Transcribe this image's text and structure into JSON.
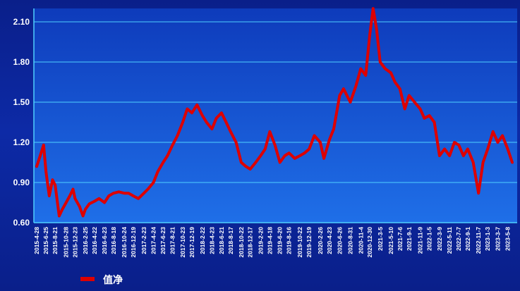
{
  "chart_data": {
    "type": "line",
    "title": "",
    "xlabel": "",
    "ylabel": "",
    "ylim": [
      0.6,
      2.2
    ],
    "yticks": [
      "0.60",
      "0.90",
      "1.20",
      "1.50",
      "1.80",
      "2.10"
    ],
    "ytick_values": [
      0.6,
      0.9,
      1.2,
      1.5,
      1.8,
      2.1
    ],
    "grid": true,
    "legend_position": "bottom-left",
    "colors": {
      "background": "#0d2aa6",
      "plot_bg": "#1450d0",
      "grid": "#4fd0ff",
      "line": "#dd0000",
      "text": "#ffffff"
    },
    "x_tick_labels": [
      "2015-4-28",
      "2015-6-25",
      "2015-8-21",
      "2015-10-28",
      "2015-12-23",
      "2016-2-25",
      "2016-4-22",
      "2016-6-23",
      "2016-8-18",
      "2016-10-24",
      "2016-12-19",
      "2017-2-23",
      "2017-4-24",
      "2017-6-23",
      "2017-8-21",
      "2017-10-23",
      "2017-12-19",
      "2018-2-22",
      "2018-4-23",
      "2018-6-21",
      "2018-8-17",
      "2018-10-22",
      "2018-12-17",
      "2019-2-20",
      "2019-4-18",
      "2019-6-20",
      "2019-8-16",
      "2019-10-22",
      "2019-12-19",
      "2020-2-26",
      "2020-4-23",
      "2020-6-26",
      "2020-8-31",
      "2020-11-4",
      "2020-12-30",
      "2021-3-5",
      "2021-5-10",
      "2021-7-6",
      "2021-9-1",
      "2021-11-9",
      "2022-1-5",
      "2022-3-9",
      "2022-5-11",
      "2022-7-7",
      "2022-9-1",
      "2022-11-7",
      "2023-1-3",
      "2023-3-7",
      "2023-5-8"
    ],
    "series": [
      {
        "name": "值净",
        "x": [
          "2015-4-28",
          "2015-5-20",
          "2015-6-10",
          "2015-6-25",
          "2015-7-15",
          "2015-8-5",
          "2015-8-21",
          "2015-9-15",
          "2015-10-5",
          "2015-10-28",
          "2015-11-20",
          "2015-12-10",
          "2015-12-23",
          "2016-1-20",
          "2016-2-10",
          "2016-2-25",
          "2016-3-20",
          "2016-4-22",
          "2016-5-20",
          "2016-6-23",
          "2016-7-20",
          "2016-8-18",
          "2016-9-20",
          "2016-10-24",
          "2016-11-20",
          "2016-12-19",
          "2017-1-20",
          "2017-2-23",
          "2017-3-20",
          "2017-4-24",
          "2017-5-20",
          "2017-6-23",
          "2017-7-20",
          "2017-8-21",
          "2017-9-20",
          "2017-10-23",
          "2017-11-20",
          "2017-12-19",
          "2018-1-20",
          "2018-2-22",
          "2018-3-20",
          "2018-4-23",
          "2018-5-20",
          "2018-6-21",
          "2018-7-20",
          "2018-8-17",
          "2018-9-20",
          "2018-10-22",
          "2018-11-20",
          "2018-12-17",
          "2019-1-20",
          "2019-2-20",
          "2019-3-20",
          "2019-4-18",
          "2019-5-20",
          "2019-6-20",
          "2019-7-20",
          "2019-8-16",
          "2019-9-20",
          "2019-10-22",
          "2019-11-20",
          "2019-12-19",
          "2020-1-20",
          "2020-2-26",
          "2020-3-20",
          "2020-4-23",
          "2020-5-20",
          "2020-6-26",
          "2020-7-20",
          "2020-8-31",
          "2020-10-5",
          "2020-11-4",
          "2020-12-5",
          "2020-12-30",
          "2021-1-20",
          "2021-2-10",
          "2021-3-5",
          "2021-4-5",
          "2021-5-10",
          "2021-6-5",
          "2021-7-6",
          "2021-8-5",
          "2021-9-1",
          "2021-10-5",
          "2021-11-9",
          "2021-12-5",
          "2022-1-5",
          "2022-2-5",
          "2022-3-9",
          "2022-4-10",
          "2022-5-11",
          "2022-6-10",
          "2022-7-7",
          "2022-8-5",
          "2022-9-1",
          "2022-10-5",
          "2022-11-7",
          "2022-12-5",
          "2023-1-3",
          "2023-2-5",
          "2023-3-7",
          "2023-4-5",
          "2023-5-8",
          "2023-6-5"
        ],
        "values": [
          1.02,
          1.1,
          1.18,
          0.98,
          0.8,
          0.92,
          0.88,
          0.65,
          0.7,
          0.75,
          0.8,
          0.85,
          0.78,
          0.72,
          0.65,
          0.7,
          0.74,
          0.76,
          0.78,
          0.75,
          0.8,
          0.82,
          0.83,
          0.82,
          0.82,
          0.8,
          0.78,
          0.82,
          0.85,
          0.9,
          0.98,
          1.05,
          1.1,
          1.18,
          1.25,
          1.35,
          1.45,
          1.42,
          1.48,
          1.4,
          1.35,
          1.3,
          1.38,
          1.42,
          1.35,
          1.28,
          1.2,
          1.05,
          1.02,
          1.0,
          1.05,
          1.1,
          1.15,
          1.28,
          1.18,
          1.05,
          1.1,
          1.12,
          1.08,
          1.1,
          1.12,
          1.15,
          1.25,
          1.2,
          1.08,
          1.22,
          1.3,
          1.55,
          1.6,
          1.5,
          1.62,
          1.75,
          1.7,
          2.0,
          2.2,
          2.05,
          1.8,
          1.75,
          1.72,
          1.65,
          1.6,
          1.45,
          1.55,
          1.5,
          1.45,
          1.38,
          1.4,
          1.35,
          1.1,
          1.15,
          1.1,
          1.2,
          1.18,
          1.1,
          1.15,
          1.05,
          0.82,
          1.05,
          1.15,
          1.28,
          1.2,
          1.25,
          1.15,
          1.05
        ]
      }
    ]
  },
  "legend": {
    "label": "值净"
  }
}
